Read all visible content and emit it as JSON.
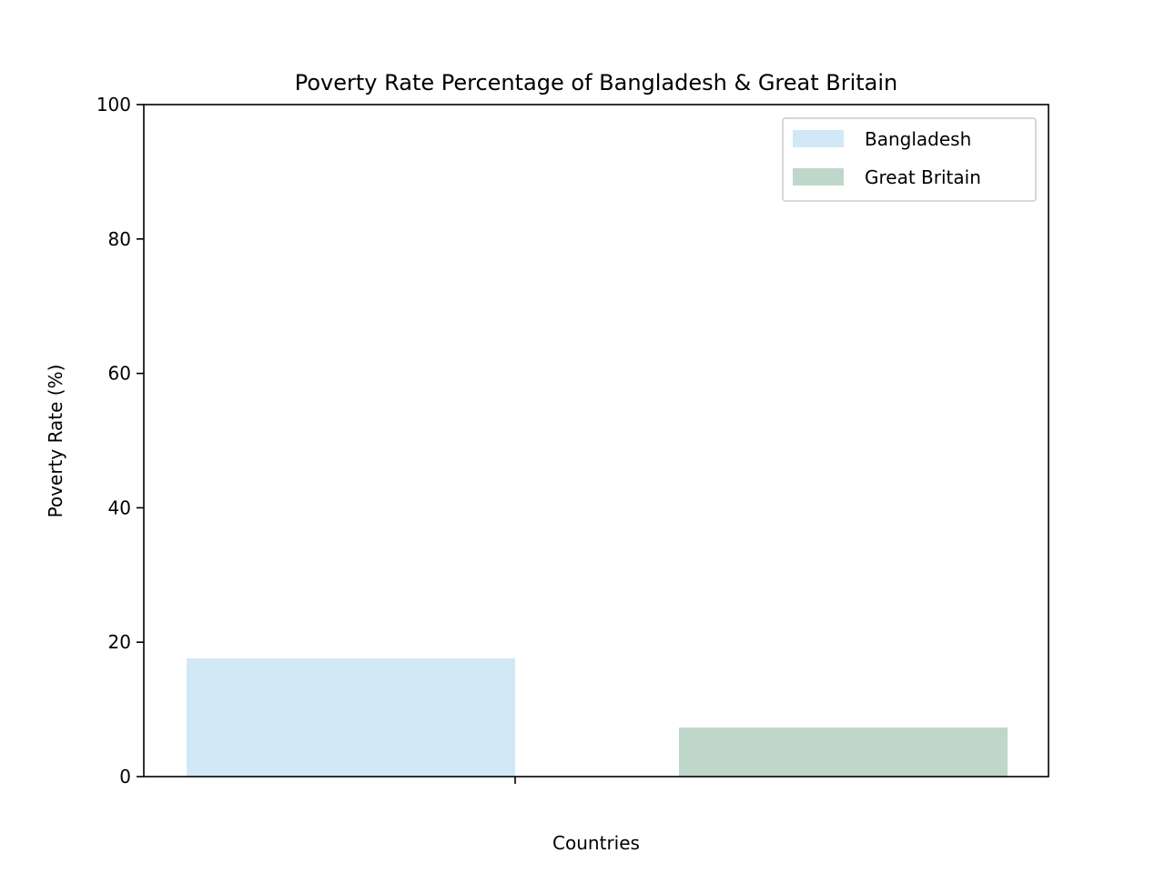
{
  "chart_data": {
    "type": "bar",
    "title": "Poverty Rate Percentage of Bangladesh & Great Britain",
    "xlabel": "Countries",
    "ylabel": "Poverty Rate (%)",
    "ylim": [
      0,
      100
    ],
    "yticks": [
      "0",
      "20",
      "40",
      "60",
      "80",
      "100"
    ],
    "grid": false,
    "legend_position": "top-right",
    "series": [
      {
        "name": "Bangladesh",
        "value": 17.6,
        "color": "#d1e8f7"
      },
      {
        "name": "Great Britain",
        "value": 7.3,
        "color": "#bfd7ca"
      }
    ]
  }
}
